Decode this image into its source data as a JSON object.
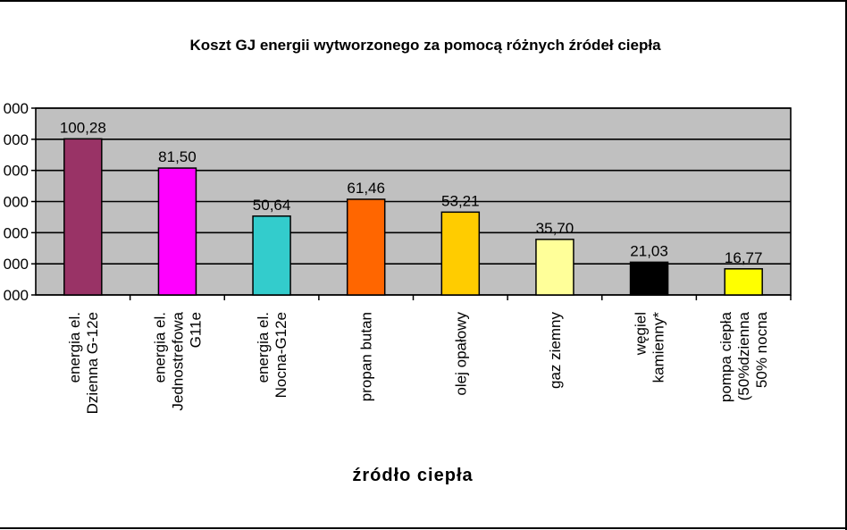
{
  "chart_data": {
    "type": "bar",
    "title": "Koszt GJ energii wytworzonego za pomocą różnych źródeł ciepła",
    "xlabel": "źródło ciepła",
    "ylabel": "",
    "ylim": [
      0,
      120
    ],
    "y_ticks": [
      {
        "value": 0,
        "label": "000"
      },
      {
        "value": 20,
        "label": "000"
      },
      {
        "value": 40,
        "label": "000"
      },
      {
        "value": 60,
        "label": "000"
      },
      {
        "value": 80,
        "label": "000"
      },
      {
        "value": 100,
        "label": "000"
      },
      {
        "value": 120,
        "label": "000"
      }
    ],
    "grid": true,
    "plot_background": "#c0c0c0",
    "categories": [
      [
        "energia el.",
        "Dzienna G-12e"
      ],
      [
        "energia el.",
        "Jednostrefowa",
        "G11e"
      ],
      [
        "energia el.",
        "Nocna-G12e"
      ],
      [
        "propan butan"
      ],
      [
        "olej opałowy"
      ],
      [
        "gaz ziemny"
      ],
      [
        "węgiel",
        "kamienny*"
      ],
      [
        "pompa ciepła",
        "(50%dzienna",
        "50% nocna"
      ]
    ],
    "values": [
      100.28,
      81.5,
      50.64,
      61.46,
      53.21,
      35.7,
      21.03,
      16.77
    ],
    "value_labels": [
      "100,28",
      "81,50",
      "50,64",
      "61,46",
      "53,21",
      "35,70",
      "21,03",
      "16,77"
    ],
    "colors": [
      "#993366",
      "#ff00ff",
      "#33cccc",
      "#ff6600",
      "#ffcc00",
      "#ffff99",
      "#000000",
      "#ffff00"
    ]
  }
}
